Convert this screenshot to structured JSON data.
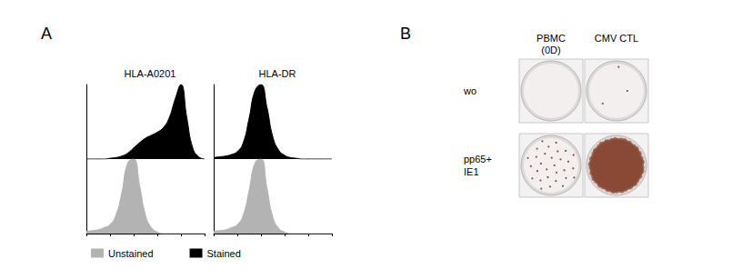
{
  "panel_labels": [
    "A",
    "B"
  ],
  "chart_data": [
    {
      "type": "area",
      "title": "HLA-A0201",
      "x": [
        1,
        1.78,
        3.16,
        5.62,
        10,
        17.8,
        31.6,
        56.2,
        100,
        178,
        316,
        562,
        1000,
        1780,
        3160,
        5620,
        10000,
        17800,
        31600,
        56200,
        100000
      ],
      "series": [
        {
          "name": "Unstained",
          "color": "#b3b3b3",
          "values": [
            3,
            4,
            5,
            8,
            12,
            25,
            55,
            95,
            100,
            65,
            25,
            8,
            2,
            0,
            0,
            0,
            0,
            0,
            0,
            0,
            0
          ]
        },
        {
          "name": "Stained",
          "color": "#000000",
          "values": [
            0,
            0,
            0,
            0,
            1,
            2,
            4,
            8,
            15,
            22,
            28,
            32,
            36,
            42,
            55,
            80,
            100,
            55,
            15,
            3,
            0
          ]
        }
      ],
      "xlim": [
        1,
        100000
      ],
      "xticks": [
        1,
        10,
        100,
        1000,
        10000,
        100000
      ],
      "ylim": [
        0,
        100
      ],
      "log": "x",
      "tick_labels": false,
      "legend": "bottom"
    },
    {
      "type": "area",
      "title": "HLA-DR",
      "x": [
        1,
        1.78,
        3.16,
        5.62,
        10,
        17.8,
        31.6,
        56.2,
        100,
        178,
        316,
        562,
        1000,
        1780,
        3160,
        5620,
        10000,
        17800,
        31600,
        56200,
        100000
      ],
      "series": [
        {
          "name": "Unstained",
          "color": "#b3b3b3",
          "values": [
            3,
            4,
            5,
            8,
            12,
            25,
            58,
            95,
            100,
            62,
            22,
            7,
            2,
            0,
            0,
            0,
            0,
            0,
            0,
            0,
            0
          ]
        },
        {
          "name": "Stained",
          "color": "#000000",
          "values": [
            2,
            3,
            4,
            6,
            10,
            22,
            55,
            92,
            100,
            70,
            30,
            12,
            5,
            2,
            1,
            0,
            0,
            0,
            0,
            0,
            0
          ]
        }
      ],
      "xlim": [
        1,
        100000
      ],
      "xticks": [
        1,
        10,
        100,
        1000,
        10000,
        100000
      ],
      "ylim": [
        0,
        100
      ],
      "log": "x",
      "tick_labels": false
    }
  ],
  "elispot": {
    "columns": [
      [
        "PBMC",
        "(0D)"
      ],
      [
        "CMV CTL"
      ]
    ],
    "rows": [
      [
        "wo"
      ],
      [
        "pp65+",
        "IE1"
      ]
    ],
    "spot_counts": [
      [
        0,
        3
      ],
      [
        30,
        600
      ]
    ]
  }
}
